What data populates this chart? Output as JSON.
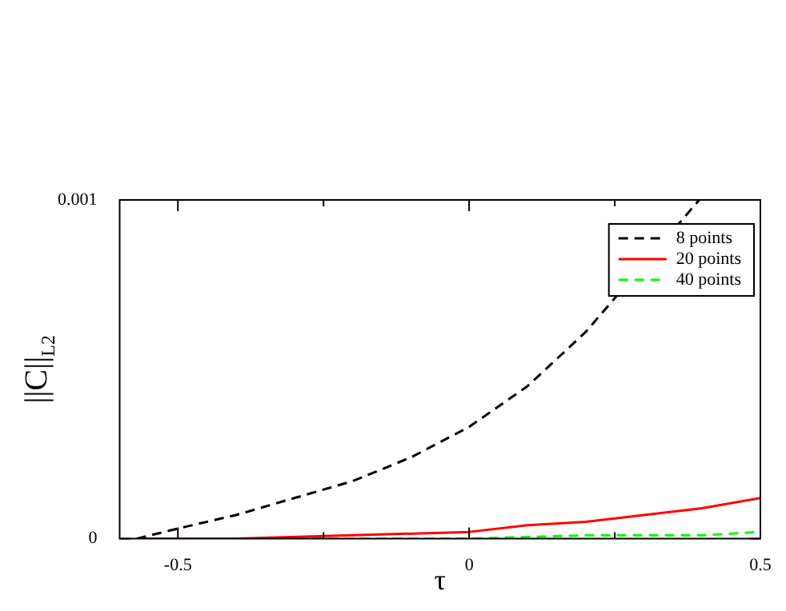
{
  "chart_data": {
    "type": "line",
    "xlabel": "τ",
    "ylabel": "||C||$_{L2}$",
    "xlim": [
      -0.6,
      0.5
    ],
    "ylim": [
      0,
      0.001
    ],
    "xticks": [
      -0.5,
      {
        "value": -0.25,
        "label": null
      },
      0,
      {
        "value": 0.25,
        "label": null
      },
      0.5
    ],
    "yticks": [
      0,
      0.001
    ],
    "grid": false,
    "legend": "top right",
    "marker": "none",
    "series": [
      {
        "name": "8 points",
        "color": "#000000",
        "line_style": "dashed",
        "x": [
          -0.571,
          -0.5,
          -0.4,
          -0.3,
          -0.2,
          -0.1,
          0,
          0.1,
          0.2,
          0.3,
          0.395
        ],
        "values": [
          0,
          3e-05,
          7e-05,
          0.00012,
          0.00017,
          0.00024,
          0.00033,
          0.00045,
          0.00061,
          null,
          0.001
        ]
      },
      {
        "name": "20 points",
        "color": "#ff0000",
        "line_style": "solid",
        "x": [
          -0.571,
          -0.4,
          -0.2,
          0,
          0.1,
          0.2,
          0.3,
          0.4,
          0.5
        ],
        "values": [
          0,
          0,
          1e-05,
          2e-05,
          4e-05,
          5e-05,
          7e-05,
          9e-05,
          0.00012
        ]
      },
      {
        "name": "40 points",
        "color": "#00ff00",
        "line_style": "dashed",
        "x": [
          -0.571,
          -0.2,
          0,
          0.2,
          0.4,
          0.5
        ],
        "values": [
          0,
          0,
          0,
          1e-05,
          1e-05,
          2e-05
        ]
      }
    ]
  }
}
